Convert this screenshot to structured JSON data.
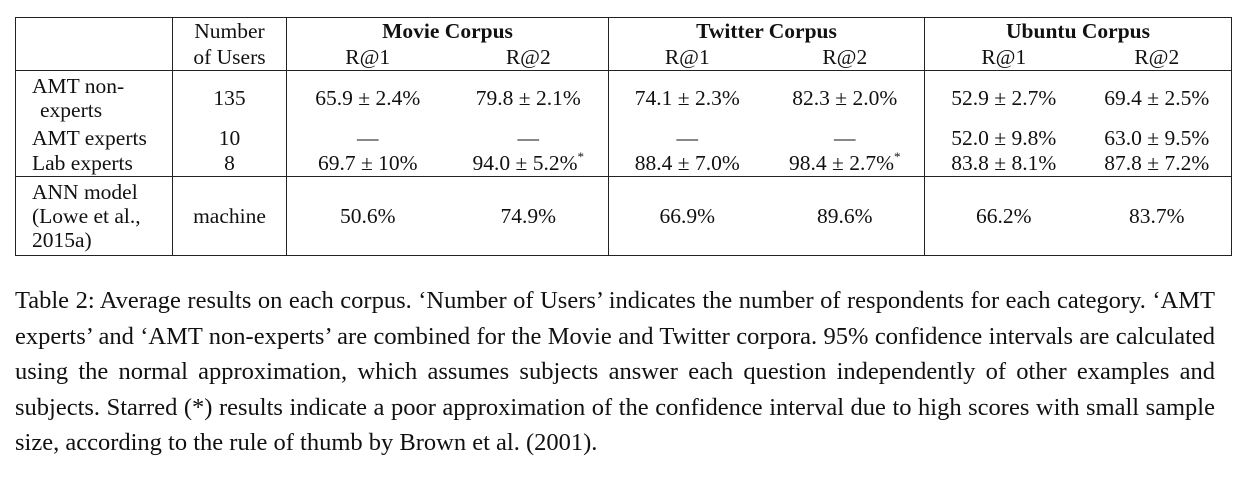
{
  "table": {
    "header": {
      "users_line1": "Number",
      "users_line2": "of Users",
      "corpora": [
        "Movie Corpus",
        "Twitter Corpus",
        "Ubuntu Corpus"
      ],
      "metrics": [
        "R@1",
        "R@2",
        "R@1",
        "R@2",
        "R@1",
        "R@2"
      ]
    },
    "rows": [
      {
        "label_line1": "AMT non-",
        "label_line2": "experts",
        "users": "135",
        "values": [
          "65.9 ± 2.4%",
          "79.8 ± 2.1%",
          "74.1 ± 2.3%",
          "82.3 ± 2.0%",
          "52.9 ± 2.7%",
          "69.4 ± 2.5%"
        ]
      },
      {
        "label": "AMT experts",
        "users": "10",
        "values": [
          "—",
          "—",
          "—",
          "—",
          "52.0 ± 9.8%",
          "63.0 ± 9.5%"
        ]
      },
      {
        "label": "Lab experts",
        "users": "8",
        "values": [
          "69.7 ± 10%",
          "94.0 ± 5.2%",
          "88.4 ± 7.0%",
          "98.4 ± 2.7%",
          "83.8 ± 8.1%",
          "87.8 ± 7.2%"
        ],
        "star_marker": "*"
      },
      {
        "label_line1": "ANN model",
        "label_line2": "(Lowe et al.,",
        "label_line3": "2015a)",
        "users": "machine",
        "values": [
          "50.6%",
          "74.9%",
          "66.9%",
          "89.6%",
          "66.2%",
          "83.7%"
        ]
      }
    ]
  },
  "caption": "Table 2: Average results on each corpus. ‘Number of Users’ indicates the number of respondents for each category. ‘AMT experts’ and ‘AMT non-experts’ are combined for the Movie and Twitter corpora. 95% confidence intervals are calculated using the normal approximation, which assumes subjects answer each question independently of other examples and subjects. Starred (*) results indicate a poor approximation of the confidence interval due to high scores with small sample size, according to the rule of thumb by Brown et al. (2001)."
}
